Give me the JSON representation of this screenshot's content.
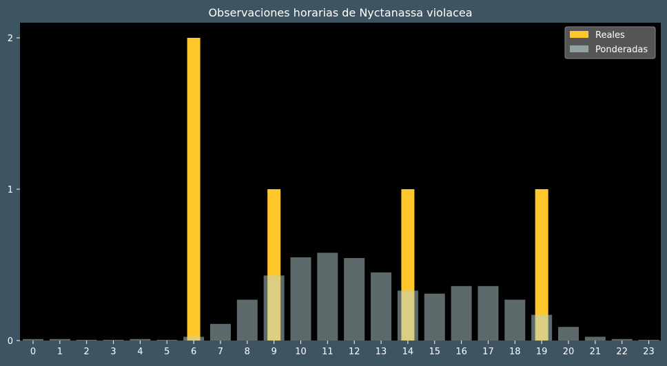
{
  "chart_data": {
    "type": "bar",
    "title": "Observaciones horarias de Nyctanassa violacea",
    "xlabel": "",
    "ylabel": "",
    "categories": [
      "0",
      "1",
      "2",
      "3",
      "4",
      "5",
      "6",
      "7",
      "8",
      "9",
      "10",
      "11",
      "12",
      "13",
      "14",
      "15",
      "16",
      "17",
      "18",
      "19",
      "20",
      "21",
      "22",
      "23"
    ],
    "yticks": [
      "0",
      "1",
      "2"
    ],
    "ylim": [
      0,
      2.1
    ],
    "grid": false,
    "legend_position": "top-right",
    "series": [
      {
        "name": "Reales",
        "color": "#ffc72c",
        "values": [
          0,
          0,
          0,
          0,
          0,
          0,
          2,
          0,
          0,
          1,
          0,
          0,
          0,
          0,
          1,
          0,
          0,
          0,
          0,
          1,
          0,
          0,
          0,
          0
        ]
      },
      {
        "name": "Ponderadas",
        "color": "#b8d4d6",
        "values": [
          0.01,
          0.01,
          0.005,
          0.005,
          0.01,
          0.005,
          0.025,
          0.11,
          0.27,
          0.43,
          0.55,
          0.58,
          0.545,
          0.45,
          0.33,
          0.31,
          0.36,
          0.36,
          0.27,
          0.17,
          0.09,
          0.025,
          0.01,
          0.005
        ]
      }
    ]
  }
}
